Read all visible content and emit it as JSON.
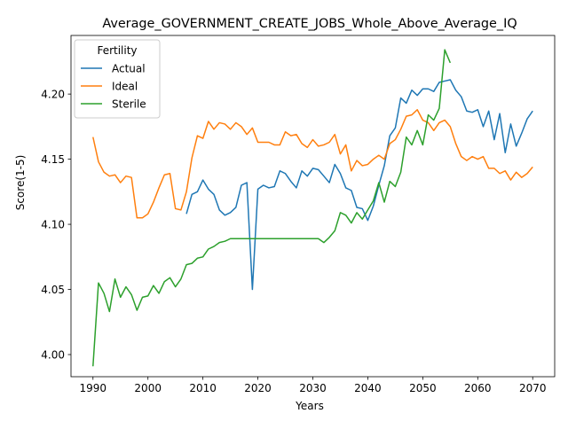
{
  "chart_data": {
    "type": "line",
    "title": "Average_GOVERNMENT_CREATE_JOBS_Whole_Above_Average_IQ",
    "xlabel": "Years",
    "ylabel": "Score(1-5)",
    "xlim": [
      1986,
      2074
    ],
    "ylim": [
      3.983,
      4.245
    ],
    "xticks": [
      1990,
      2000,
      2010,
      2020,
      2030,
      2040,
      2050,
      2060,
      2070
    ],
    "yticks": [
      4.0,
      4.05,
      4.1,
      4.15,
      4.2
    ],
    "ytick_labels": [
      "4.00",
      "4.05",
      "4.10",
      "4.15",
      "4.20"
    ],
    "grid": false,
    "legend": {
      "title": "Fertility",
      "placement": "top-left"
    },
    "series": [
      {
        "name": "Actual",
        "color": "#1f77b4",
        "x": [
          2007,
          2008,
          2009,
          2010,
          2011,
          2012,
          2013,
          2014,
          2015,
          2016,
          2017,
          2018,
          2019,
          2020,
          2021,
          2022,
          2023,
          2024,
          2025,
          2026,
          2027,
          2028,
          2029,
          2030,
          2031,
          2032,
          2033,
          2034,
          2035,
          2036,
          2037,
          2038,
          2039,
          2040,
          2041,
          2042,
          2043,
          2044,
          2045,
          2046,
          2047,
          2048,
          2049,
          2050,
          2051,
          2052,
          2053,
          2054,
          2055,
          2056,
          2057,
          2058,
          2059,
          2060,
          2061,
          2062,
          2063,
          2064,
          2065,
          2066,
          2067,
          2068,
          2069,
          2070
        ],
        "y": [
          4.108,
          4.123,
          4.125,
          4.134,
          4.127,
          4.123,
          4.111,
          4.107,
          4.109,
          4.113,
          4.13,
          4.132,
          4.05,
          4.127,
          4.13,
          4.128,
          4.129,
          4.141,
          4.139,
          4.133,
          4.128,
          4.141,
          4.137,
          4.143,
          4.142,
          4.137,
          4.132,
          4.146,
          4.139,
          4.128,
          4.126,
          4.113,
          4.112,
          4.103,
          4.114,
          4.13,
          4.145,
          4.168,
          4.174,
          4.197,
          4.193,
          4.203,
          4.199,
          4.204,
          4.204,
          4.202,
          4.209,
          4.21,
          4.211,
          4.203,
          4.198,
          4.187,
          4.186,
          4.188,
          4.175,
          4.187,
          4.165,
          4.185,
          4.155,
          4.177,
          4.16,
          4.17,
          4.181,
          4.187
        ]
      },
      {
        "name": "Ideal",
        "color": "#ff7f0e",
        "x": [
          1990,
          1991,
          1992,
          1993,
          1994,
          1995,
          1996,
          1997,
          1998,
          1999,
          2000,
          2001,
          2002,
          2003,
          2004,
          2005,
          2006,
          2007,
          2008,
          2009,
          2010,
          2011,
          2012,
          2013,
          2014,
          2015,
          2016,
          2017,
          2018,
          2019,
          2020,
          2021,
          2022,
          2023,
          2024,
          2025,
          2026,
          2027,
          2028,
          2029,
          2030,
          2031,
          2032,
          2033,
          2034,
          2035,
          2036,
          2037,
          2038,
          2039,
          2040,
          2041,
          2042,
          2043,
          2044,
          2045,
          2046,
          2047,
          2048,
          2049,
          2050,
          2051,
          2052,
          2053,
          2054,
          2055,
          2056,
          2057,
          2058,
          2059,
          2060,
          2061,
          2062,
          2063,
          2064,
          2065,
          2066,
          2067,
          2068,
          2069,
          2070
        ],
        "y": [
          4.167,
          4.148,
          4.14,
          4.137,
          4.138,
          4.132,
          4.137,
          4.136,
          4.105,
          4.105,
          4.108,
          4.117,
          4.128,
          4.138,
          4.139,
          4.112,
          4.111,
          4.125,
          4.151,
          4.168,
          4.166,
          4.179,
          4.173,
          4.178,
          4.177,
          4.173,
          4.178,
          4.175,
          4.169,
          4.174,
          4.163,
          4.163,
          4.163,
          4.161,
          4.161,
          4.171,
          4.168,
          4.169,
          4.162,
          4.159,
          4.165,
          4.16,
          4.161,
          4.163,
          4.169,
          4.154,
          4.161,
          4.141,
          4.149,
          4.145,
          4.146,
          4.15,
          4.153,
          4.15,
          4.162,
          4.165,
          4.173,
          4.183,
          4.184,
          4.188,
          4.18,
          4.178,
          4.172,
          4.178,
          4.18,
          4.175,
          4.162,
          4.152,
          4.149,
          4.152,
          4.15,
          4.152,
          4.143,
          4.143,
          4.139,
          4.141,
          4.134,
          4.14,
          4.136,
          4.139,
          4.144
        ]
      },
      {
        "name": "Sterile",
        "color": "#2ca02c",
        "x": [
          1990,
          1991,
          1992,
          1993,
          1994,
          1995,
          1996,
          1997,
          1998,
          1999,
          2000,
          2001,
          2002,
          2003,
          2004,
          2005,
          2006,
          2007,
          2008,
          2009,
          2010,
          2011,
          2012,
          2013,
          2014,
          2015,
          2016,
          2017,
          2018,
          2019,
          2020,
          2021,
          2022,
          2023,
          2024,
          2025,
          2026,
          2027,
          2028,
          2029,
          2030,
          2031,
          2032,
          2033,
          2034,
          2035,
          2036,
          2037,
          2038,
          2039,
          2040,
          2041,
          2042,
          2043,
          2044,
          2045,
          2046,
          2047,
          2048,
          2049,
          2050,
          2051,
          2052,
          2053,
          2054,
          2055
        ],
        "y": [
          3.991,
          4.055,
          4.047,
          4.033,
          4.058,
          4.044,
          4.052,
          4.046,
          4.034,
          4.044,
          4.045,
          4.053,
          4.047,
          4.056,
          4.059,
          4.052,
          4.058,
          4.069,
          4.07,
          4.074,
          4.075,
          4.081,
          4.083,
          4.086,
          4.087,
          4.089,
          4.089,
          4.089,
          4.089,
          4.089,
          4.089,
          4.089,
          4.089,
          4.089,
          4.089,
          4.089,
          4.089,
          4.089,
          4.089,
          4.089,
          4.089,
          4.089,
          4.086,
          4.09,
          4.095,
          4.109,
          4.107,
          4.101,
          4.109,
          4.104,
          4.111,
          4.118,
          4.132,
          4.117,
          4.133,
          4.129,
          4.14,
          4.167,
          4.161,
          4.172,
          4.161,
          4.184,
          4.18,
          4.189,
          4.234,
          4.224
        ]
      }
    ]
  }
}
